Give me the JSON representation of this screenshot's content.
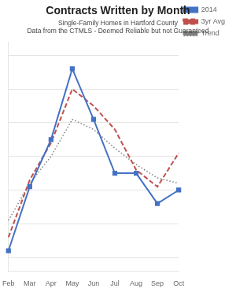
{
  "chart_data": {
    "type": "line",
    "title": "Contracts Written by Month",
    "subtitle": [
      "Single-Family Homes in Hartford County",
      "Data from the CTMLS - Deemed Reliable but not Guaranteed"
    ],
    "categories": [
      "Feb",
      "Mar",
      "Apr",
      "May",
      "Jun",
      "Jul",
      "Aug",
      "Sep",
      "Oct"
    ],
    "series": [
      {
        "name": "2014",
        "color": "#4472C4",
        "values": [
          10,
          105,
          175,
          280,
          205,
          125,
          125,
          80,
          100
        ],
        "marker": "square",
        "line_style": "solid"
      },
      {
        "name": "3yr Avg",
        "color": "#C0504D",
        "values": [
          30,
          115,
          170,
          250,
          225,
          190,
          130,
          105,
          155
        ],
        "line_style": "dashed"
      },
      {
        "name": "Trend",
        "color": "#808080",
        "values": [
          55,
          110,
          150,
          205,
          190,
          162,
          138,
          118,
          110
        ],
        "line_style": "dotted"
      }
    ],
    "ylim": [
      -20,
      320
    ],
    "yticks": [
      0,
      50,
      100,
      150,
      200,
      250,
      300
    ],
    "grid": true,
    "legend": "right",
    "tick_labels": "x"
  }
}
